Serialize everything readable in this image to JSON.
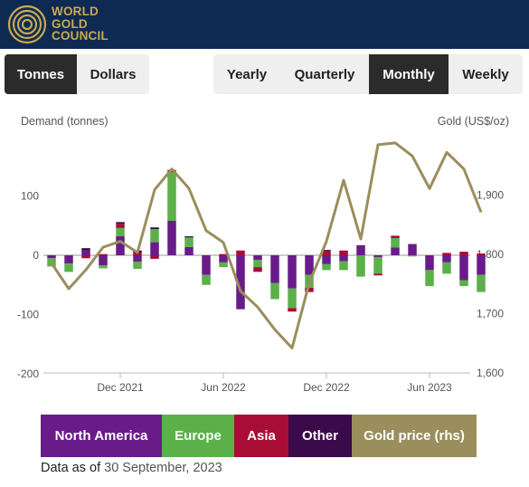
{
  "header": {
    "logo_lines": [
      "WORLD",
      "GOLD",
      "COUNCIL"
    ]
  },
  "units_toggle": [
    "Tonnes",
    "Dollars"
  ],
  "units_selected": "Tonnes",
  "period_toggle": [
    "Yearly",
    "Quarterly",
    "Monthly",
    "Weekly"
  ],
  "period_selected": "Monthly",
  "chart_data": {
    "type": "bar",
    "stacked": true,
    "left_axis": {
      "title": "Demand (tonnes)",
      "ticks": [
        "100",
        "0",
        "-100",
        "-200"
      ],
      "range": [
        -200,
        200
      ]
    },
    "right_axis": {
      "title": "Gold (US$/oz)",
      "ticks": [
        "1,900",
        "1,800",
        "1,700",
        "1,600"
      ],
      "range": [
        1600,
        2000
      ]
    },
    "x_tick_labels": [
      "Dec 2021",
      "Jun 2022",
      "Dec 2022",
      "Jun 2023"
    ],
    "categories": [
      "Aug 2021",
      "Sep 2021",
      "Oct 2021",
      "Nov 2021",
      "Dec 2021",
      "Jan 2022",
      "Feb 2022",
      "Mar 2022",
      "Apr 2022",
      "May 2022",
      "Jun 2022",
      "Jul 2022",
      "Aug 2022",
      "Sep 2022",
      "Oct 2022",
      "Nov 2022",
      "Dec 2022",
      "Jan 2023",
      "Feb 2023",
      "Mar 2023",
      "Apr 2023",
      "May 2023",
      "Jun 2023",
      "Jul 2023",
      "Aug 2023",
      "Sep 2023"
    ],
    "series": [
      {
        "name": "North America",
        "color": "#6a1b8a",
        "values": [
          -5,
          -14,
          8,
          -17,
          32,
          -11,
          22,
          58,
          14,
          -33,
          -12,
          -91,
          -8,
          -47,
          -56,
          -33,
          -15,
          -10,
          17,
          -3,
          13,
          19,
          -25,
          -12,
          -42,
          -33
        ]
      },
      {
        "name": "Europe",
        "color": "#5cb04a",
        "values": [
          -14,
          -14,
          0,
          -5,
          14,
          -12,
          22,
          82,
          16,
          -17,
          -8,
          0,
          -12,
          -27,
          -33,
          -22,
          -10,
          -15,
          -36,
          -28,
          16,
          -2,
          -27,
          -19,
          -10,
          -29
        ]
      },
      {
        "name": "Asia",
        "color": "#a80d36",
        "values": [
          0,
          0,
          -5,
          2,
          7,
          4,
          -6,
          4,
          0,
          0,
          2,
          8,
          -8,
          0,
          -6,
          -7,
          7,
          8,
          0,
          -3,
          4,
          0,
          0,
          4,
          6,
          3
        ]
      },
      {
        "name": "Other",
        "color": "#3a0a4a",
        "values": [
          0,
          0,
          4,
          0,
          3,
          4,
          3,
          0,
          2,
          0,
          0,
          0,
          0,
          0,
          0,
          0,
          2,
          0,
          0,
          0,
          0,
          0,
          0,
          0,
          0,
          0
        ]
      }
    ],
    "line": {
      "name": "Gold price (rhs)",
      "color": "#9a8e5c",
      "values": [
        1785,
        1742,
        1774,
        1812,
        1822,
        1803,
        1909,
        1944,
        1911,
        1840,
        1820,
        1738,
        1711,
        1673,
        1642,
        1752,
        1822,
        1925,
        1826,
        1985,
        1988,
        1966,
        1911,
        1972,
        1944,
        1871
      ]
    },
    "grid": false
  },
  "legend": [
    {
      "label": "North America",
      "color": "#6a1b8a"
    },
    {
      "label": "Europe",
      "color": "#5cb04a"
    },
    {
      "label": "Asia",
      "color": "#a80d36"
    },
    {
      "label": "Other",
      "color": "#3a0a4a"
    },
    {
      "label": "Gold price (rhs)",
      "color": "#9a8e5c"
    }
  ],
  "footer": {
    "as_of_prefix": "Data as of",
    "as_of_date": "30 September, 2023"
  }
}
